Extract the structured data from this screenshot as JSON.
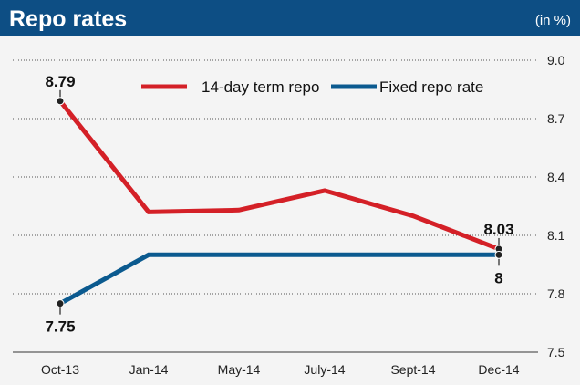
{
  "header": {
    "title": "Repo rates",
    "unit": "(in %)"
  },
  "colors": {
    "header_bg": "#0d4e84",
    "header_text": "#ffffff",
    "plot_bg": "#f4f4f4",
    "grid": "#555555",
    "axis_text": "#222222",
    "series_red": "#d42027",
    "series_blue": "#0b5a8f",
    "marker": "#222222"
  },
  "chart_data": {
    "type": "line",
    "title": "Repo rates",
    "unit_label": "(in %)",
    "xlabel": "",
    "ylabel": "",
    "x_tick_labels": [
      "Oct-13",
      "Jan-14",
      "May-14",
      "July-14",
      "Sept-14",
      "Dec-14"
    ],
    "y_ticks": [
      7.5,
      7.8,
      8.1,
      8.4,
      8.7,
      9.0
    ],
    "y_tick_labels": [
      "7.5",
      "7.8",
      "8.1",
      "8.4",
      "8.7",
      "9.0"
    ],
    "ylim": [
      7.5,
      9.0
    ],
    "grid": "horizontal dotted",
    "legend_position": "top-center",
    "series": [
      {
        "name": "14-day term repo",
        "color": "#d42027",
        "points": [
          {
            "x": "Oct-13",
            "y": 8.79
          },
          {
            "x": "Jan-14",
            "y": 8.22
          },
          {
            "x": "May-14",
            "y": 8.23
          },
          {
            "x": "July-14",
            "y": 8.33
          },
          {
            "x": "Sept-14",
            "y": 8.2
          },
          {
            "x": "Dec-14",
            "y": 8.03
          }
        ]
      },
      {
        "name": "Fixed repo rate",
        "color": "#0b5a8f",
        "points": [
          {
            "x": "Oct-13",
            "y": 7.75
          },
          {
            "x": "Jan-14",
            "y": 8.0
          },
          {
            "x": "May-14",
            "y": 8.0
          },
          {
            "x": "July-14",
            "y": 8.0
          },
          {
            "x": "Sept-14",
            "y": 8.0
          },
          {
            "x": "Dec-14",
            "y": 8.0
          }
        ]
      }
    ],
    "annotations": [
      {
        "series": 0,
        "point": 0,
        "label": "8.79",
        "placement": "above"
      },
      {
        "series": 0,
        "point": 5,
        "label": "8.03",
        "placement": "above"
      },
      {
        "series": 1,
        "point": 0,
        "label": "7.75",
        "placement": "below"
      },
      {
        "series": 1,
        "point": 5,
        "label": "8",
        "placement": "below"
      }
    ]
  }
}
